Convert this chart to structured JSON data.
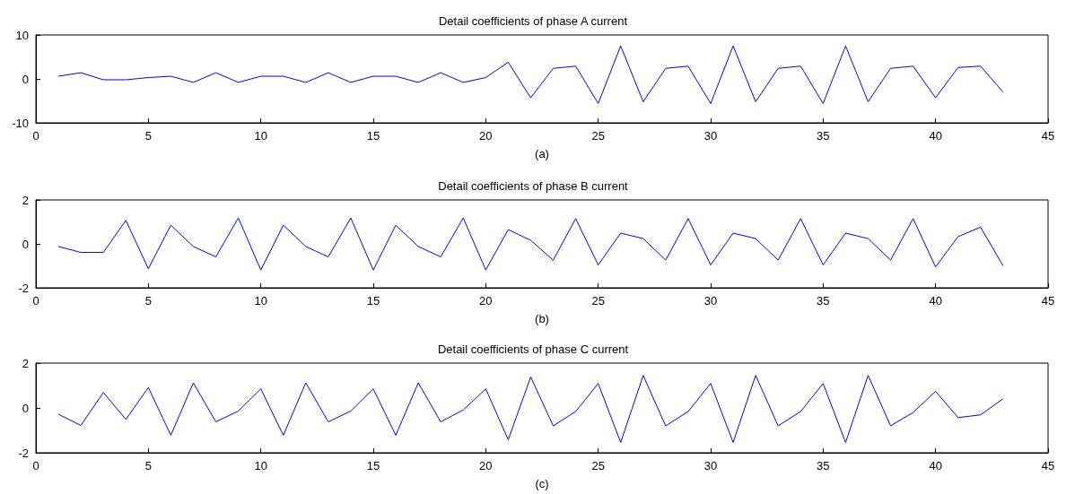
{
  "chart_data": [
    {
      "type": "line",
      "title": "Detail coefficients of phase A current",
      "xlabel": "(a)",
      "x": [
        1,
        2,
        3,
        4,
        5,
        6,
        7,
        8,
        9,
        10,
        11,
        12,
        13,
        14,
        15,
        16,
        17,
        18,
        19,
        20,
        21,
        22,
        23,
        24,
        25,
        26,
        27,
        28,
        29,
        30,
        31,
        32,
        33,
        34,
        35,
        36,
        37,
        38,
        39,
        40,
        41,
        42,
        43
      ],
      "series": [
        {
          "color": "#0000ff",
          "values": [
            0.6,
            1.4,
            -0.2,
            -0.2,
            0.3,
            0.6,
            -0.8,
            1.4,
            -0.8,
            0.6,
            0.6,
            -0.8,
            1.4,
            -0.8,
            0.6,
            0.6,
            -0.8,
            1.4,
            -0.8,
            0.3,
            3.8,
            -4.3,
            2.4,
            2.9,
            -5.6,
            7.5,
            -5.2,
            2.4,
            2.9,
            -5.6,
            7.5,
            -5.2,
            2.4,
            2.9,
            -5.6,
            7.5,
            -5.2,
            2.4,
            2.9,
            -4.3,
            2.6,
            2.9,
            -3.0
          ]
        }
      ],
      "xlim": [
        0,
        45
      ],
      "xticks": [
        0,
        5,
        10,
        15,
        20,
        25,
        30,
        35,
        40,
        45
      ],
      "ylim": [
        -10,
        10
      ],
      "yticks": [
        -10,
        0,
        10
      ],
      "marker": "none",
      "line_style": "solid"
    },
    {
      "type": "line",
      "title": "Detail coefficients of phase B current",
      "xlabel": "(b)",
      "x": [
        1,
        2,
        3,
        4,
        5,
        6,
        7,
        8,
        9,
        10,
        11,
        12,
        13,
        14,
        15,
        16,
        17,
        18,
        19,
        20,
        21,
        22,
        23,
        24,
        25,
        26,
        27,
        28,
        29,
        30,
        31,
        32,
        33,
        34,
        35,
        36,
        37,
        38,
        39,
        40,
        41,
        42,
        43
      ],
      "series": [
        {
          "color": "#0000ff",
          "values": [
            -0.12,
            -0.39,
            -0.39,
            1.07,
            -1.13,
            0.85,
            -0.12,
            -0.59,
            1.18,
            -1.19,
            0.85,
            -0.12,
            -0.59,
            1.18,
            -1.19,
            0.85,
            -0.12,
            -0.59,
            1.18,
            -1.19,
            0.65,
            0.16,
            -0.74,
            1.15,
            -0.96,
            0.49,
            0.24,
            -0.74,
            1.15,
            -0.96,
            0.49,
            0.24,
            -0.74,
            1.15,
            -0.96,
            0.49,
            0.24,
            -0.74,
            1.15,
            -1.05,
            0.33,
            0.76,
            -1.0
          ]
        }
      ],
      "xlim": [
        0,
        45
      ],
      "xticks": [
        0,
        5,
        10,
        15,
        20,
        25,
        30,
        35,
        40,
        45
      ],
      "ylim": [
        -2,
        2
      ],
      "yticks": [
        -2,
        0,
        2
      ],
      "marker": "none",
      "line_style": "solid"
    },
    {
      "type": "line",
      "title": "Detail coefficients of phase C current",
      "xlabel": "(c)",
      "x": [
        1,
        2,
        3,
        4,
        5,
        6,
        7,
        8,
        9,
        10,
        11,
        12,
        13,
        14,
        15,
        16,
        17,
        18,
        19,
        20,
        21,
        22,
        23,
        24,
        25,
        26,
        27,
        28,
        29,
        30,
        31,
        32,
        33,
        34,
        35,
        36,
        37,
        38,
        39,
        40,
        41,
        42,
        43
      ],
      "series": [
        {
          "color": "#0000ff",
          "values": [
            -0.28,
            -0.78,
            0.69,
            -0.51,
            0.91,
            -1.22,
            1.12,
            -0.62,
            -0.14,
            0.85,
            -1.22,
            1.12,
            -0.62,
            -0.14,
            0.85,
            -1.22,
            1.12,
            -0.62,
            -0.09,
            0.85,
            -1.42,
            1.38,
            -0.8,
            -0.16,
            1.09,
            -1.54,
            1.45,
            -0.8,
            -0.16,
            1.09,
            -1.54,
            1.45,
            -0.8,
            -0.16,
            1.09,
            -1.54,
            1.45,
            -0.8,
            -0.2,
            0.74,
            -0.43,
            -0.31,
            0.41
          ]
        }
      ],
      "xlim": [
        0,
        45
      ],
      "xticks": [
        0,
        5,
        10,
        15,
        20,
        25,
        30,
        35,
        40,
        45
      ],
      "ylim": [
        -2,
        2
      ],
      "yticks": [
        -2,
        0,
        2
      ],
      "marker": "none",
      "line_style": "solid"
    }
  ]
}
